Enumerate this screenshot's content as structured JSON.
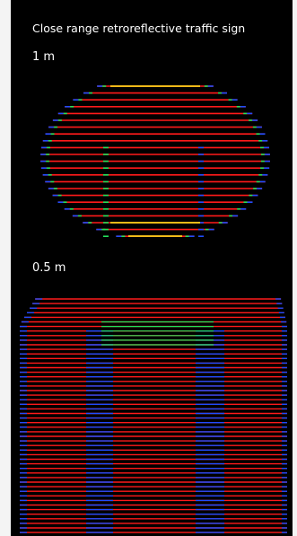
{
  "title": "Close range retroreflective traffic sign",
  "panels": [
    {
      "distance_label": "1 m"
    },
    {
      "distance_label": "0.5 m"
    }
  ],
  "colors": {
    "background": "#000000",
    "side_bar": "#f4f4f4",
    "text": "#ffffff",
    "high_intensity": "#ff1a1a",
    "mid_high_intensity": "#ffd21a",
    "mid_intensity": "#23e05a",
    "low_intensity": "#1f4dff"
  }
}
